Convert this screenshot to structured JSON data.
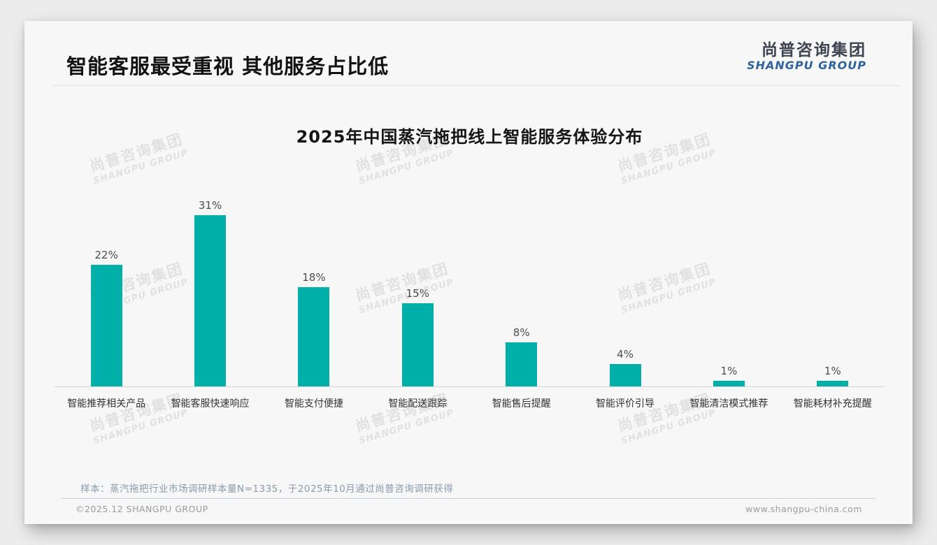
{
  "page": {
    "title": "智能客服最受重视 其他服务占比低",
    "logo": {
      "cn": "尚普咨询集团",
      "en": "SHANGPU GROUP"
    },
    "watermark": {
      "cn": "尚普咨询集团",
      "en": "SHANGPU GROUP"
    },
    "note": "样本：蒸汽拖把行业市场调研样本量N=1335，于2025年10月通过尚普咨询调研获得",
    "footer": {
      "left": "©2025.12 SHANGPU GROUP",
      "right": "www.shangpu-china.com"
    }
  },
  "colors": {
    "bar": "#00AFA8",
    "logo_blue": "#2f619f",
    "note_text": "#8a9bae"
  },
  "chart_data": {
    "type": "bar",
    "title": "2025年中国蒸汽拖把线上智能服务体验分布",
    "categories": [
      "智能推荐相关产品",
      "智能客服快速响应",
      "智能支付便捷",
      "智能配送跟踪",
      "智能售后提醒",
      "智能评价引导",
      "智能清洁模式推荐",
      "智能耗材补充提醒"
    ],
    "values": [
      22,
      31,
      18,
      15,
      8,
      4,
      1,
      1
    ],
    "data_labels": [
      "22%",
      "31%",
      "18%",
      "15%",
      "8%",
      "4%",
      "1%",
      "1%"
    ],
    "unit": "%",
    "xlabel": "",
    "ylabel": "",
    "ylim": [
      0,
      33
    ],
    "grid": false,
    "legend": false,
    "bar_color": "#00AFA8"
  }
}
